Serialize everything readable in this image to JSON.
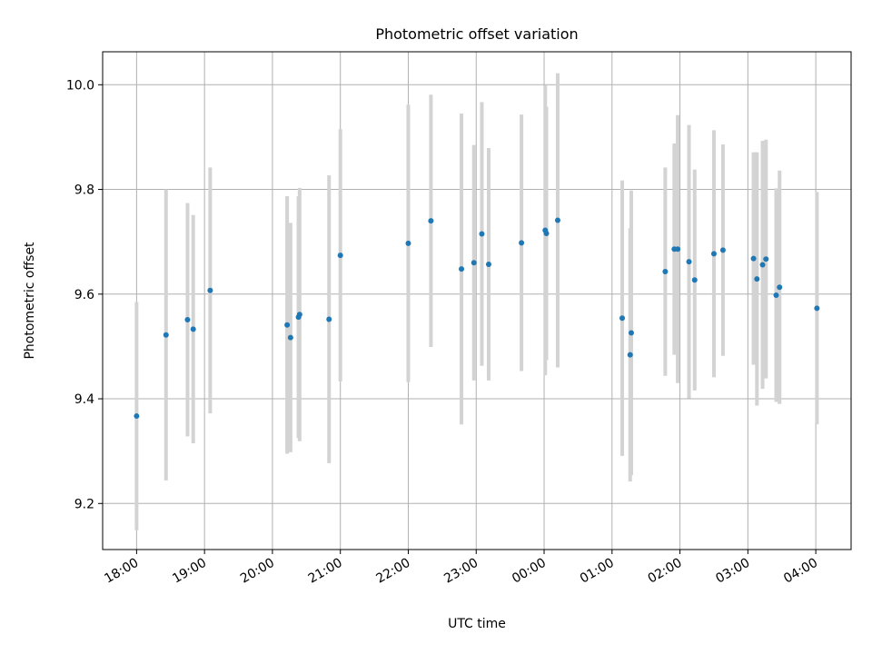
{
  "chart_data": {
    "type": "scatter",
    "title": "Photometric offset variation",
    "xlabel": "UTC time",
    "ylabel": "Photometric offset",
    "y_ticks": [
      9.2,
      9.4,
      9.6,
      9.8,
      10.0
    ],
    "y_tick_labels": [
      "9.2",
      "9.4",
      "9.6",
      "9.8",
      "10.0"
    ],
    "x_ticks": [
      "18:00",
      "19:00",
      "20:00",
      "21:00",
      "22:00",
      "23:00",
      "00:00",
      "01:00",
      "02:00",
      "03:00",
      "04:00"
    ],
    "x_tick_hours": [
      0,
      1,
      2,
      3,
      4,
      5,
      6,
      7,
      8,
      9,
      10
    ],
    "xlim_hours": [
      -0.5,
      10.52
    ],
    "ylim": [
      9.112,
      10.063
    ],
    "grid": true,
    "colors": {
      "point": "#1f77b4",
      "errorbar": "#d3d3d3",
      "grid": "#b0b0b0"
    },
    "points": [
      {
        "x": "18:00",
        "y": 9.367,
        "yerr": 0.218
      },
      {
        "x": "18:26",
        "y": 9.522,
        "yerr": 0.278
      },
      {
        "x": "18:45",
        "y": 9.551,
        "yerr": 0.223
      },
      {
        "x": "18:50",
        "y": 9.533,
        "yerr": 0.218
      },
      {
        "x": "19:05",
        "y": 9.607,
        "yerr": 0.235
      },
      {
        "x": "20:13",
        "y": 9.541,
        "yerr": 0.246
      },
      {
        "x": "20:16",
        "y": 9.517,
        "yerr": 0.219
      },
      {
        "x": "20:23",
        "y": 9.556,
        "yerr": 0.231
      },
      {
        "x": "20:24",
        "y": 9.561,
        "yerr": 0.242
      },
      {
        "x": "20:50",
        "y": 9.552,
        "yerr": 0.275
      },
      {
        "x": "21:00",
        "y": 9.674,
        "yerr": 0.241
      },
      {
        "x": "22:00",
        "y": 9.697,
        "yerr": 0.265
      },
      {
        "x": "22:20",
        "y": 9.74,
        "yerr": 0.241
      },
      {
        "x": "22:47",
        "y": 9.648,
        "yerr": 0.297
      },
      {
        "x": "22:58",
        "y": 9.66,
        "yerr": 0.225
      },
      {
        "x": "23:05",
        "y": 9.715,
        "yerr": 0.252
      },
      {
        "x": "23:11",
        "y": 9.657,
        "yerr": 0.222
      },
      {
        "x": "23:40",
        "y": 9.698,
        "yerr": 0.245
      },
      {
        "x": "00:01",
        "y": 9.722,
        "yerr": 0.277
      },
      {
        "x": "00:02",
        "y": 9.716,
        "yerr": 0.242
      },
      {
        "x": "00:12",
        "y": 9.741,
        "yerr": 0.281
      },
      {
        "x": "01:09",
        "y": 9.554,
        "yerr": 0.263
      },
      {
        "x": "01:16",
        "y": 9.484,
        "yerr": 0.242
      },
      {
        "x": "01:17",
        "y": 9.526,
        "yerr": 0.272
      },
      {
        "x": "01:47",
        "y": 9.643,
        "yerr": 0.199
      },
      {
        "x": "01:55",
        "y": 9.686,
        "yerr": 0.202
      },
      {
        "x": "01:58",
        "y": 9.686,
        "yerr": 0.256
      },
      {
        "x": "02:08",
        "y": 9.662,
        "yerr": 0.261
      },
      {
        "x": "02:13",
        "y": 9.627,
        "yerr": 0.211
      },
      {
        "x": "02:30",
        "y": 9.677,
        "yerr": 0.236
      },
      {
        "x": "02:38",
        "y": 9.684,
        "yerr": 0.202
      },
      {
        "x": "03:05",
        "y": 9.668,
        "yerr": 0.203
      },
      {
        "x": "03:08",
        "y": 9.629,
        "yerr": 0.242
      },
      {
        "x": "03:13",
        "y": 9.656,
        "yerr": 0.237
      },
      {
        "x": "03:16",
        "y": 9.667,
        "yerr": 0.228
      },
      {
        "x": "03:25",
        "y": 9.598,
        "yerr": 0.204
      },
      {
        "x": "03:28",
        "y": 9.613,
        "yerr": 0.223
      },
      {
        "x": "04:01",
        "y": 9.573,
        "yerr": 0.222
      }
    ]
  }
}
